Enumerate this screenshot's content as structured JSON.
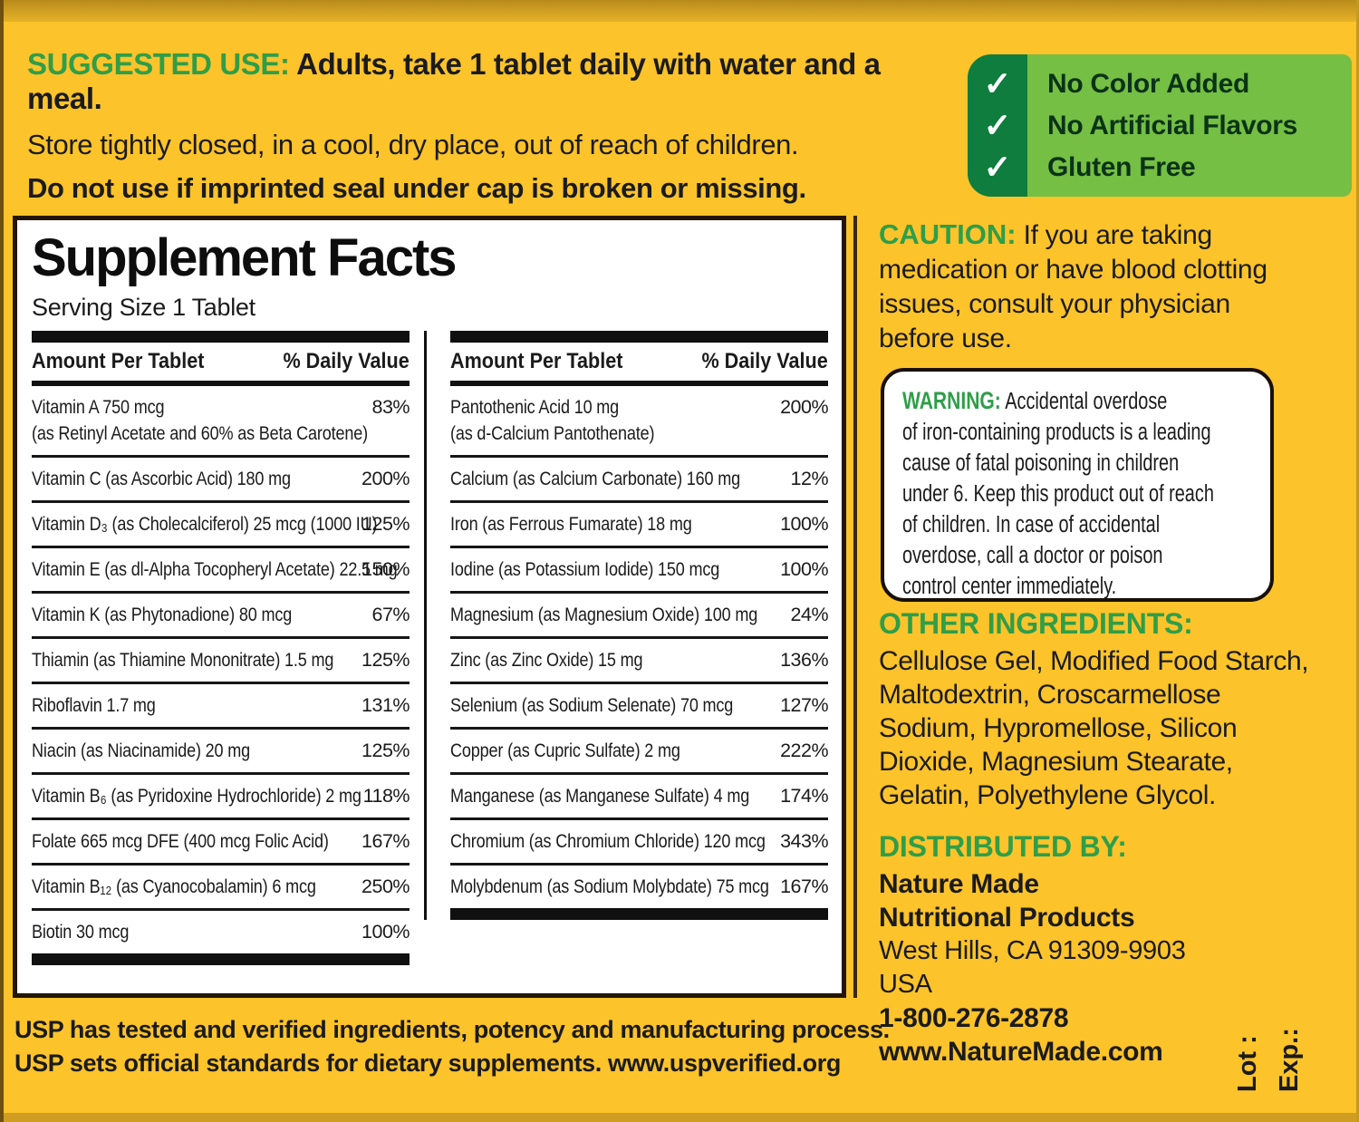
{
  "suggested_use": {
    "label": "SUGGESTED USE:",
    "line1_bold": " Adults, take 1 tablet daily with water and a meal.",
    "line2": "Store tightly closed, in a cool, dry place, out of reach of children.",
    "line3": "Do not use if imprinted seal under cap is broken or missing."
  },
  "claims": {
    "check_glyph": "✓",
    "items": [
      {
        "label": "No Color Added"
      },
      {
        "label": "No Artificial Flavors"
      },
      {
        "label": "Gluten Free"
      }
    ]
  },
  "supplement_facts": {
    "title": "Supplement Facts",
    "serving_size": "Serving Size 1 Tablet",
    "amount_header": "Amount Per Tablet",
    "dv_header": "% Daily Value",
    "left_rows": [
      {
        "name": "Vitamin A 750 mcg",
        "note": "(as Retinyl Acetate and 60% as Beta Carotene)",
        "dv": "83%"
      },
      {
        "name": "Vitamin C (as Ascorbic Acid) 180 mg",
        "dv": "200%"
      },
      {
        "name": "Vitamin D₃ (as Cholecalciferol) 25 mcg (1000 IU)",
        "dv": "125%"
      },
      {
        "name": "Vitamin E (as dl-Alpha Tocopheryl Acetate) 22.5 mg",
        "dv": "150%"
      },
      {
        "name": "Vitamin K (as Phytonadione) 80 mcg",
        "dv": "67%"
      },
      {
        "name": "Thiamin (as Thiamine Mononitrate) 1.5 mg",
        "dv": "125%"
      },
      {
        "name": "Riboflavin 1.7 mg",
        "dv": "131%"
      },
      {
        "name": "Niacin (as Niacinamide) 20 mg",
        "dv": "125%"
      },
      {
        "name": "Vitamin B₆ (as Pyridoxine Hydrochloride) 2 mg",
        "dv": "118%"
      },
      {
        "name": "Folate 665 mcg DFE (400 mcg Folic Acid)",
        "dv": "167%"
      },
      {
        "name": "Vitamin B₁₂ (as Cyanocobalamin) 6 mcg",
        "dv": "250%"
      },
      {
        "name": "Biotin 30 mcg",
        "dv": "100%"
      }
    ],
    "right_rows": [
      {
        "name": "Pantothenic Acid 10 mg",
        "note": "(as d-Calcium Pantothenate)",
        "dv": "200%"
      },
      {
        "name": "Calcium (as Calcium Carbonate) 160 mg",
        "dv": "12%"
      },
      {
        "name": "Iron (as Ferrous Fumarate) 18 mg",
        "dv": "100%"
      },
      {
        "name": "Iodine (as Potassium Iodide) 150 mcg",
        "dv": "100%"
      },
      {
        "name": "Magnesium (as Magnesium Oxide) 100 mg",
        "dv": "24%"
      },
      {
        "name": "Zinc (as Zinc Oxide) 15 mg",
        "dv": "136%"
      },
      {
        "name": "Selenium (as Sodium Selenate) 70 mcg",
        "dv": "127%"
      },
      {
        "name": "Copper (as Cupric Sulfate) 2 mg",
        "dv": "222%"
      },
      {
        "name": "Manganese (as Manganese Sulfate) 4 mg",
        "dv": "174%"
      },
      {
        "name": "Chromium (as Chromium Chloride) 120 mcg",
        "dv": "343%"
      },
      {
        "name": "Molybdenum (as Sodium Molybdate) 75 mcg",
        "dv": "167%"
      }
    ]
  },
  "usp": {
    "line1": "USP has tested and verified ingredients, potency and manufacturing process.",
    "line2": "USP sets official standards for dietary supplements. ",
    "line2_bold": "www.uspverified.org"
  },
  "caution": {
    "label": "CAUTION:",
    "text": " If you are taking\nmedication or have blood clotting\nissues, consult your physician\nbefore use."
  },
  "warning": {
    "label": "WARNING:",
    "text": " Accidental overdose\nof iron-containing products is a leading\ncause of fatal poisoning in children\nunder 6. Keep this product out of reach\nof children. In case of accidental\noverdose, call a doctor or poison\ncontrol center immediately."
  },
  "other_ingredients": {
    "label": "OTHER INGREDIENTS:",
    "text": "Cellulose Gel, Modified Food Starch,\nMaltodextrin, Croscarmellose\nSodium, Hypromellose, Silicon\nDioxide, Magnesium Stearate,\nGelatin, Polyethylene Glycol."
  },
  "distributed_by": {
    "label": "DISTRIBUTED BY:",
    "company_line1": "Nature Made",
    "company_line2": "Nutritional Products",
    "address": "West Hills, CA 91309-9903",
    "country": "USA",
    "phone": "1-800-276-2878",
    "website": "www.NatureMade.com"
  },
  "lot_exp": {
    "lot": "Lot :",
    "exp": "Exp.:"
  },
  "colors": {
    "background": "#FCC32B",
    "green_heading": "#2F9E48",
    "claims_strip_green": "#0E7D3D",
    "claims_body_green": "#74BF44",
    "text_black": "#1b1b1b"
  }
}
